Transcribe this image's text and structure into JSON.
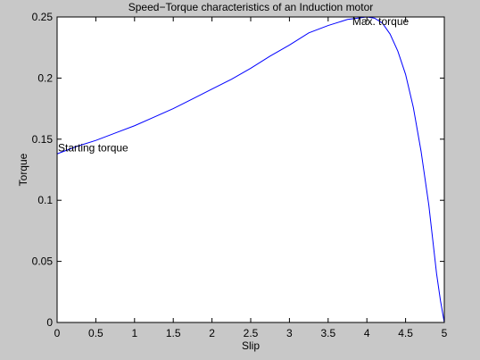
{
  "colors": {
    "figure_background": "#c8c8c8",
    "axes_background": "#ffffff",
    "axes_frame": "#000000",
    "line": "#0000ff"
  },
  "chart_data": {
    "type": "line",
    "title": "Speed−Torque characteristics of an Induction motor",
    "xlabel": "Slip",
    "ylabel": "Torque",
    "xlim": [
      0,
      5
    ],
    "ylim": [
      0,
      0.25
    ],
    "xticks": [
      0,
      0.5,
      1,
      1.5,
      2,
      2.5,
      3,
      3.5,
      4,
      4.5,
      5
    ],
    "xtick_labels": [
      "0",
      "0.5",
      "1",
      "1.5",
      "2",
      "2.5",
      "3",
      "3.5",
      "4",
      "4.5",
      "5"
    ],
    "yticks": [
      0,
      0.05,
      0.1,
      0.15,
      0.2,
      0.25
    ],
    "ytick_labels": [
      "0",
      "0.05",
      "0.1",
      "0.15",
      "0.2",
      "0.25"
    ],
    "grid": false,
    "legend": "none",
    "series": [
      {
        "x": [
          0,
          0.25,
          0.5,
          0.75,
          1.0,
          1.25,
          1.5,
          1.75,
          2.0,
          2.25,
          2.5,
          2.75,
          3.0,
          3.25,
          3.5,
          3.75,
          4.0,
          4.1,
          4.2,
          4.3,
          4.4,
          4.5,
          4.6,
          4.7,
          4.8,
          4.85,
          4.9,
          4.95,
          5.0
        ],
        "y": [
          0.138,
          0.144,
          0.149,
          0.155,
          0.161,
          0.168,
          0.175,
          0.183,
          0.191,
          0.199,
          0.208,
          0.218,
          0.227,
          0.237,
          0.243,
          0.248,
          0.25,
          0.249,
          0.245,
          0.236,
          0.222,
          0.203,
          0.176,
          0.14,
          0.096,
          0.068,
          0.04,
          0.018,
          0.0
        ]
      }
    ],
    "annotations": [
      {
        "text": "Starting torque",
        "x": 0.0,
        "y": 0.143
      },
      {
        "text": "Max. torque",
        "x": 3.8,
        "y": 0.2465
      }
    ]
  }
}
